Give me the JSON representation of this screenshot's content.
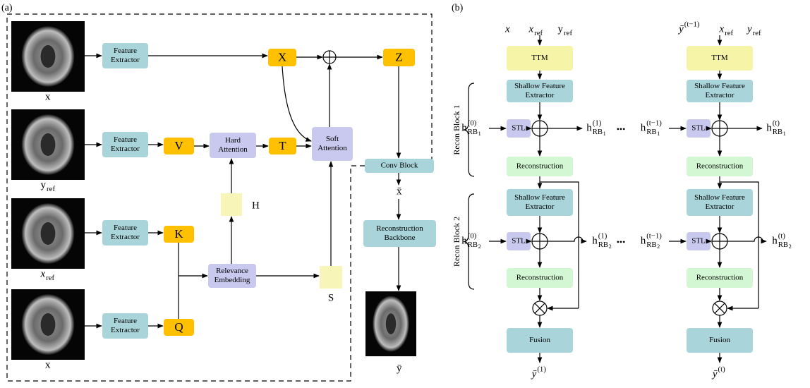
{
  "panel_a": {
    "label": "(a)",
    "images": [
      {
        "text": "x"
      },
      {
        "text": "y",
        "sub": "ref"
      },
      {
        "text": "x",
        "sub": "ref"
      },
      {
        "text": "x"
      }
    ],
    "feature_extractors": [
      {
        "lines": [
          "Feature",
          "Extractor"
        ]
      },
      {
        "lines": [
          "Feature",
          "Extractor"
        ]
      },
      {
        "lines": [
          "Feature",
          "Extractor"
        ]
      },
      {
        "lines": [
          "Feature",
          "Extractor"
        ]
      }
    ],
    "tokens": {
      "X": "X",
      "V": "V",
      "T": "T",
      "K": "K",
      "Q": "Q",
      "Z": "Z"
    },
    "hard_attention": {
      "lines": [
        "Hard",
        "Attention"
      ]
    },
    "soft_attention": {
      "lines": [
        "Soft",
        "Attention"
      ]
    },
    "relevance_embedding": {
      "lines": [
        "Relevance",
        "Embedding"
      ]
    },
    "conv_block": {
      "lines": [
        "Conv Block"
      ]
    },
    "H": "H",
    "S": "S",
    "x_bar": "x̄",
    "reconstruction_backbone": {
      "lines": [
        "Reconstruction",
        "Backbone"
      ]
    },
    "y_bar": "ȳ"
  },
  "panel_b": {
    "label": "(b)",
    "block_labels": [
      "Recon Block 1",
      "Recon Block 2"
    ],
    "ellipsis": [
      "•••",
      "•••"
    ],
    "columns": [
      {
        "inputs": [
          {
            "text": "x"
          },
          {
            "text": "x",
            "sub": "ref"
          },
          {
            "text": "y",
            "sub": "ref"
          }
        ],
        "ttm": {
          "lines": [
            "TTM"
          ]
        },
        "blocks": [
          {
            "shallow": {
              "lines": [
                "Shallow Feature",
                "Extractor"
              ]
            },
            "stl": {
              "lines": [
                "STL"
              ]
            },
            "recon": {
              "lines": [
                "Reconstruction"
              ]
            },
            "h_in": {
              "text": "h",
              "sup": "(0)",
              "sub": "RB",
              "sub2": "1"
            },
            "h_out": {
              "text": "h",
              "sup": "(1)",
              "sub": "RB",
              "sub2": "1"
            }
          },
          {
            "shallow": {
              "lines": [
                "Shallow Feature",
                "Extractor"
              ]
            },
            "stl": {
              "lines": [
                "STL"
              ]
            },
            "recon": {
              "lines": [
                "Reconstruction"
              ]
            },
            "h_in": {
              "text": "h",
              "sup": "(0)",
              "sub": "RB",
              "sub2": "2"
            },
            "h_out": {
              "text": "h",
              "sup": "(1)",
              "sub": "RB",
              "sub2": "2"
            }
          }
        ],
        "fusion": {
          "lines": [
            "Fusion"
          ]
        },
        "output": {
          "text": "ȳ",
          "sup": "(1)"
        }
      },
      {
        "inputs": [
          {
            "text": "ȳ",
            "sup": "(t−1)"
          },
          {
            "text": "x",
            "sub": "ref"
          },
          {
            "text": "y",
            "sub": "ref"
          }
        ],
        "ttm": {
          "lines": [
            "TTM"
          ]
        },
        "blocks": [
          {
            "shallow": {
              "lines": [
                "Shallow Feature",
                "Extractor"
              ]
            },
            "stl": {
              "lines": [
                "STL"
              ]
            },
            "recon": {
              "lines": [
                "Reconstruction"
              ]
            },
            "h_in": {
              "text": "h",
              "sup": "(t−1)",
              "sub": "RB",
              "sub2": "1"
            },
            "h_out": {
              "text": "h",
              "sup": "(t)",
              "sub": "RB",
              "sub2": "1"
            }
          },
          {
            "shallow": {
              "lines": [
                "Shallow Feature",
                "Extractor"
              ]
            },
            "stl": {
              "lines": [
                "STL"
              ]
            },
            "recon": {
              "lines": [
                "Reconstruction"
              ]
            },
            "h_in": {
              "text": "h",
              "sup": "(t−1)",
              "sub": "RB",
              "sub2": "2"
            },
            "h_out": {
              "text": "h",
              "sup": "(t)",
              "sub": "RB",
              "sub2": "2"
            }
          }
        ],
        "fusion": {
          "lines": [
            "Fusion"
          ]
        },
        "output": {
          "text": "ȳ",
          "sup": "(t)"
        }
      }
    ]
  }
}
